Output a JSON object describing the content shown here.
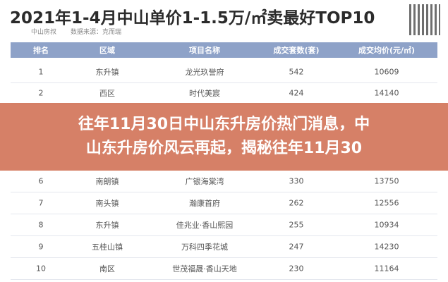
{
  "header": {
    "title": "2021年1-4月中山单价1-1.5万/㎡卖最好TOP10",
    "author": "中山房叔",
    "source": "数据来源：克而瑞"
  },
  "table": {
    "columns": [
      "排名",
      "区域",
      "项目名称",
      "成交套数(套)",
      "成交均价(元/㎡)"
    ],
    "rows": [
      [
        "1",
        "东升镇",
        "龙光玖誉府",
        "542",
        "10609"
      ],
      [
        "2",
        "西区",
        "时代美宸",
        "424",
        "14140"
      ],
      [
        "6",
        "南朗镇",
        "广银海棠湾",
        "330",
        "13750"
      ],
      [
        "7",
        "南头镇",
        "瀚康首府",
        "262",
        "12556"
      ],
      [
        "8",
        "东升镇",
        "佳兆业·香山熙园",
        "255",
        "10934"
      ],
      [
        "9",
        "五桂山镇",
        "万科四季花城",
        "247",
        "14230"
      ],
      [
        "10",
        "南区",
        "世茂福晟·香山天地",
        "230",
        "11164"
      ]
    ]
  },
  "banner": {
    "lines": [
      "往年11月30日中山东升房价热门消息，中",
      "山东升房价风云再起，揭秘往年11月30"
    ]
  }
}
